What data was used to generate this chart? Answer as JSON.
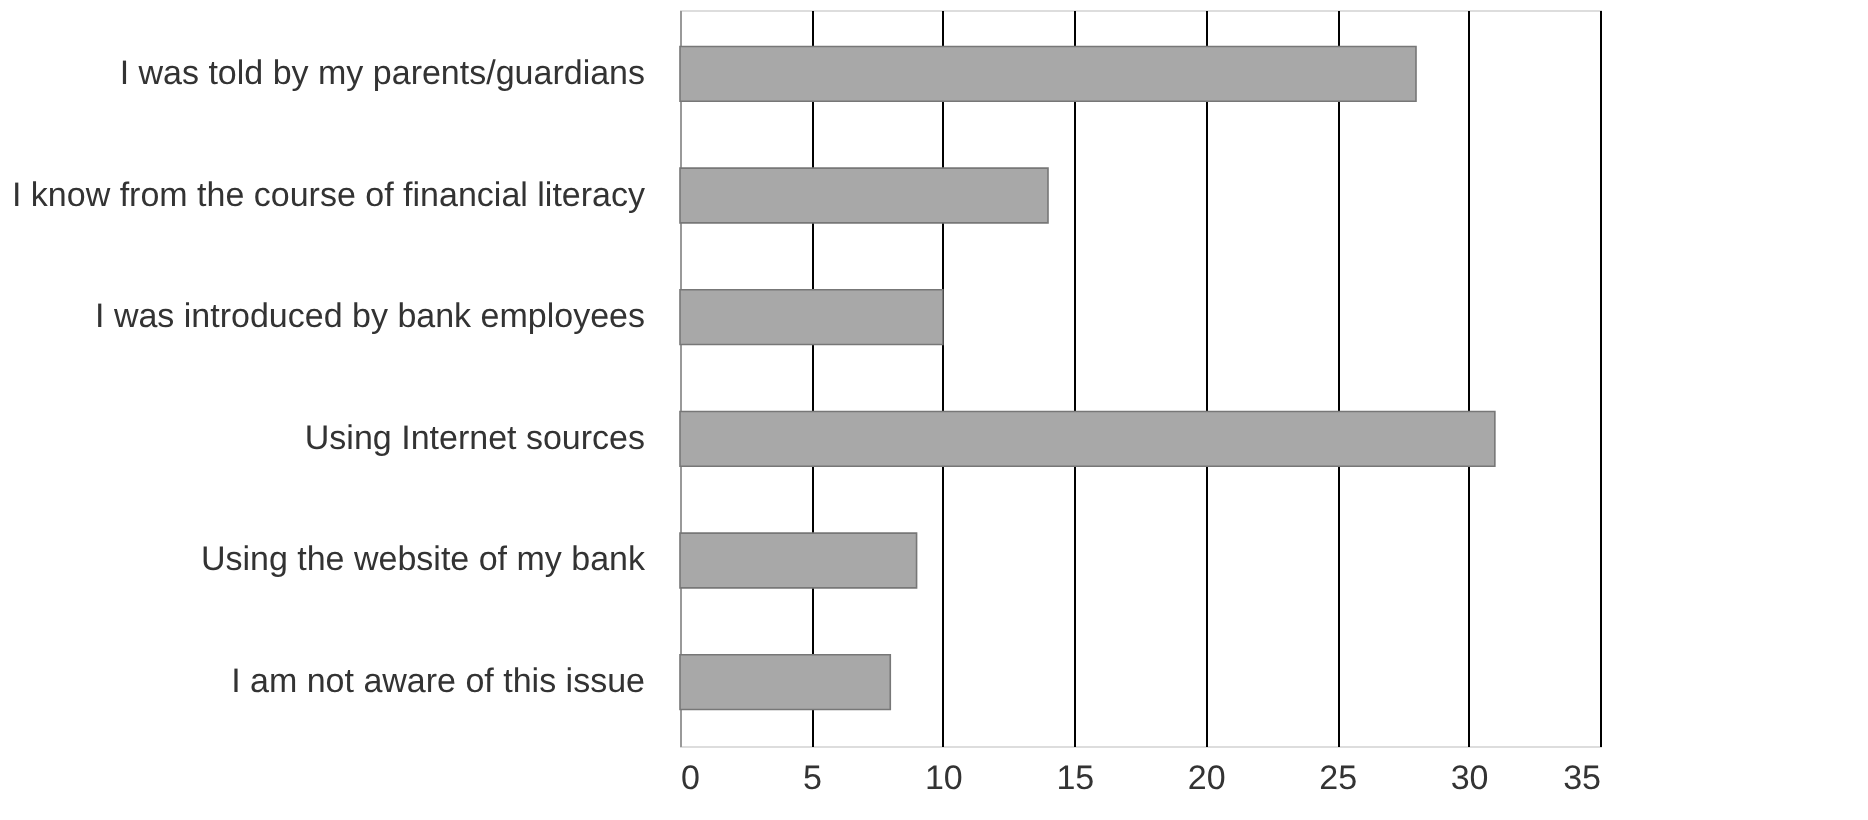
{
  "chart_data": {
    "type": "bar",
    "orientation": "horizontal",
    "categories": [
      "I was told by my parents/guardians",
      "I know from the course of financial literacy",
      "I was introduced by bank employees",
      "Using Internet sources",
      "Using the website of my bank",
      "I am not aware of this issue"
    ],
    "values": [
      28,
      14,
      10,
      31,
      9,
      8
    ],
    "color": "#a8a8a8",
    "xlim": [
      0,
      35
    ],
    "xticks": [
      0,
      5,
      10,
      15,
      20,
      25,
      30,
      35
    ],
    "grid": "x"
  }
}
